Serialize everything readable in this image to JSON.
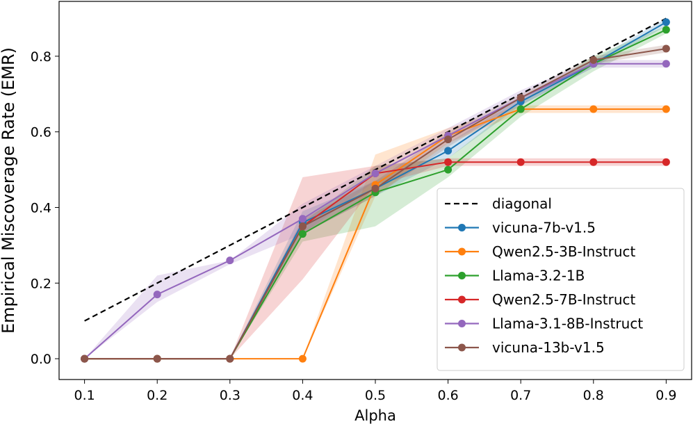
{
  "chart_data": {
    "type": "line",
    "title": "",
    "xlabel": "Alpha",
    "ylabel": "Empirical Miscoverage Rate (EMR)",
    "x": [
      0.1,
      0.2,
      0.3,
      0.4,
      0.5,
      0.6,
      0.7,
      0.8,
      0.9
    ],
    "xticks": [
      "0.1",
      "0.2",
      "0.3",
      "0.4",
      "0.5",
      "0.6",
      "0.7",
      "0.8",
      "0.9"
    ],
    "yticks": [
      "0.0",
      "0.2",
      "0.4",
      "0.6",
      "0.8"
    ],
    "xlim": [
      0.065,
      0.935
    ],
    "ylim": [
      -0.055,
      0.945
    ],
    "grid": false,
    "legend_position": "bottom-right",
    "reference_line": {
      "name": "diagonal",
      "x": [
        0.1,
        0.9
      ],
      "y": [
        0.1,
        0.9
      ],
      "color": "#000000",
      "style": "dashed"
    },
    "series": [
      {
        "name": "vicuna-7b-v1.5",
        "color": "#1f77b4",
        "values": [
          0.0,
          0.0,
          0.0,
          0.36,
          0.45,
          0.55,
          0.68,
          0.78,
          0.89
        ],
        "lower": [
          0.0,
          0.0,
          0.0,
          0.33,
          0.43,
          0.53,
          0.67,
          0.77,
          0.88
        ],
        "upper": [
          0.0,
          0.0,
          0.0,
          0.39,
          0.47,
          0.57,
          0.69,
          0.79,
          0.9
        ]
      },
      {
        "name": "Qwen2.5-3B-Instruct",
        "color": "#ff7f0e",
        "values": [
          0.0,
          0.0,
          0.0,
          0.0,
          0.46,
          0.59,
          0.66,
          0.66,
          0.66
        ],
        "lower": [
          0.0,
          0.0,
          0.0,
          0.0,
          0.43,
          0.57,
          0.65,
          0.65,
          0.65
        ],
        "upper": [
          0.0,
          0.0,
          0.0,
          0.0,
          0.54,
          0.61,
          0.67,
          0.67,
          0.67
        ]
      },
      {
        "name": "Llama-3.2-1B",
        "color": "#2ca02c",
        "values": [
          0.0,
          0.0,
          0.0,
          0.33,
          0.44,
          0.5,
          0.66,
          0.78,
          0.87
        ],
        "lower": [
          0.0,
          0.0,
          0.0,
          0.31,
          0.35,
          0.48,
          0.64,
          0.76,
          0.86
        ],
        "upper": [
          0.0,
          0.0,
          0.0,
          0.36,
          0.51,
          0.53,
          0.68,
          0.8,
          0.88
        ]
      },
      {
        "name": "Qwen2.5-7B-Instruct",
        "color": "#d62728",
        "values": [
          0.0,
          0.0,
          0.0,
          0.35,
          0.49,
          0.52,
          0.52,
          0.52,
          0.52
        ],
        "lower": [
          0.0,
          0.0,
          0.0,
          0.21,
          0.46,
          0.51,
          0.51,
          0.51,
          0.51
        ],
        "upper": [
          0.0,
          0.0,
          0.0,
          0.48,
          0.51,
          0.53,
          0.53,
          0.53,
          0.53
        ]
      },
      {
        "name": "Llama-3.1-8B-Instruct",
        "color": "#9467bd",
        "values": [
          0.0,
          0.17,
          0.26,
          0.37,
          0.49,
          0.59,
          0.69,
          0.78,
          0.78
        ],
        "lower": [
          0.0,
          0.15,
          0.25,
          0.33,
          0.47,
          0.57,
          0.67,
          0.77,
          0.77
        ],
        "upper": [
          0.0,
          0.22,
          0.26,
          0.41,
          0.51,
          0.61,
          0.71,
          0.79,
          0.79
        ]
      },
      {
        "name": "vicuna-13b-v1.5",
        "color": "#8c564b",
        "values": [
          0.0,
          0.0,
          0.0,
          0.35,
          0.45,
          0.58,
          0.69,
          0.79,
          0.82
        ],
        "lower": [
          0.0,
          0.0,
          0.0,
          0.33,
          0.43,
          0.56,
          0.68,
          0.78,
          0.81
        ],
        "upper": [
          0.0,
          0.0,
          0.0,
          0.37,
          0.47,
          0.6,
          0.7,
          0.8,
          0.83
        ]
      }
    ]
  }
}
